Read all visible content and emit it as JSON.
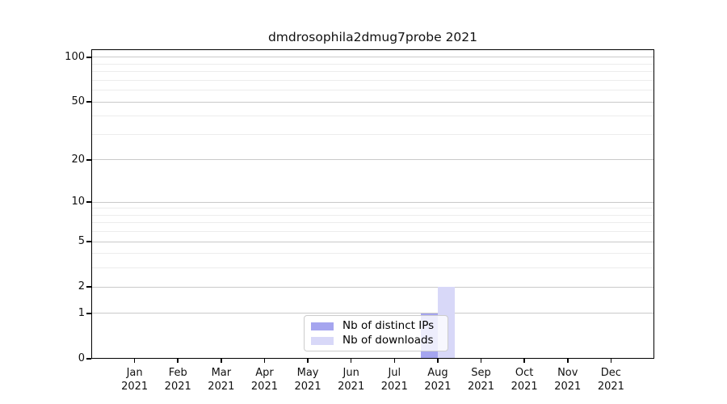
{
  "figure": {
    "background": "#ffffff"
  },
  "chart_data": {
    "type": "bar",
    "title": "dmdrosophila2dmug7probe 2021",
    "categories": [
      "Jan\n2021",
      "Feb\n2021",
      "Mar\n2021",
      "Apr\n2021",
      "May\n2021",
      "Jun\n2021",
      "Jul\n2021",
      "Aug\n2021",
      "Sep\n2021",
      "Oct\n2021",
      "Nov\n2021",
      "Dec\n2021"
    ],
    "series": [
      {
        "name": "Nb of distinct IPs",
        "color": "#a5a5ef",
        "values": [
          0,
          0,
          0,
          0,
          0,
          0,
          0,
          1,
          0,
          0,
          0,
          0
        ]
      },
      {
        "name": "Nb of downloads",
        "color": "#d8d8f8",
        "values": [
          0,
          0,
          0,
          0,
          0,
          0,
          0,
          2,
          0,
          0,
          0,
          0
        ]
      }
    ],
    "xlabel": "",
    "ylabel": "",
    "y_scale": "log1p",
    "ylim": [
      0,
      112
    ],
    "y_major_ticks": [
      0,
      1,
      2,
      5,
      10,
      20,
      50,
      100
    ],
    "y_minor_ticks": [
      3,
      4,
      6,
      7,
      8,
      9,
      30,
      40,
      60,
      70,
      80,
      90
    ],
    "grid": true,
    "legend_position": "lower center inside",
    "colors": {
      "grid_major": "#c9c9c9",
      "grid_minor": "#ececec",
      "spine": "#000000",
      "legend_border": "#cccccc"
    }
  }
}
